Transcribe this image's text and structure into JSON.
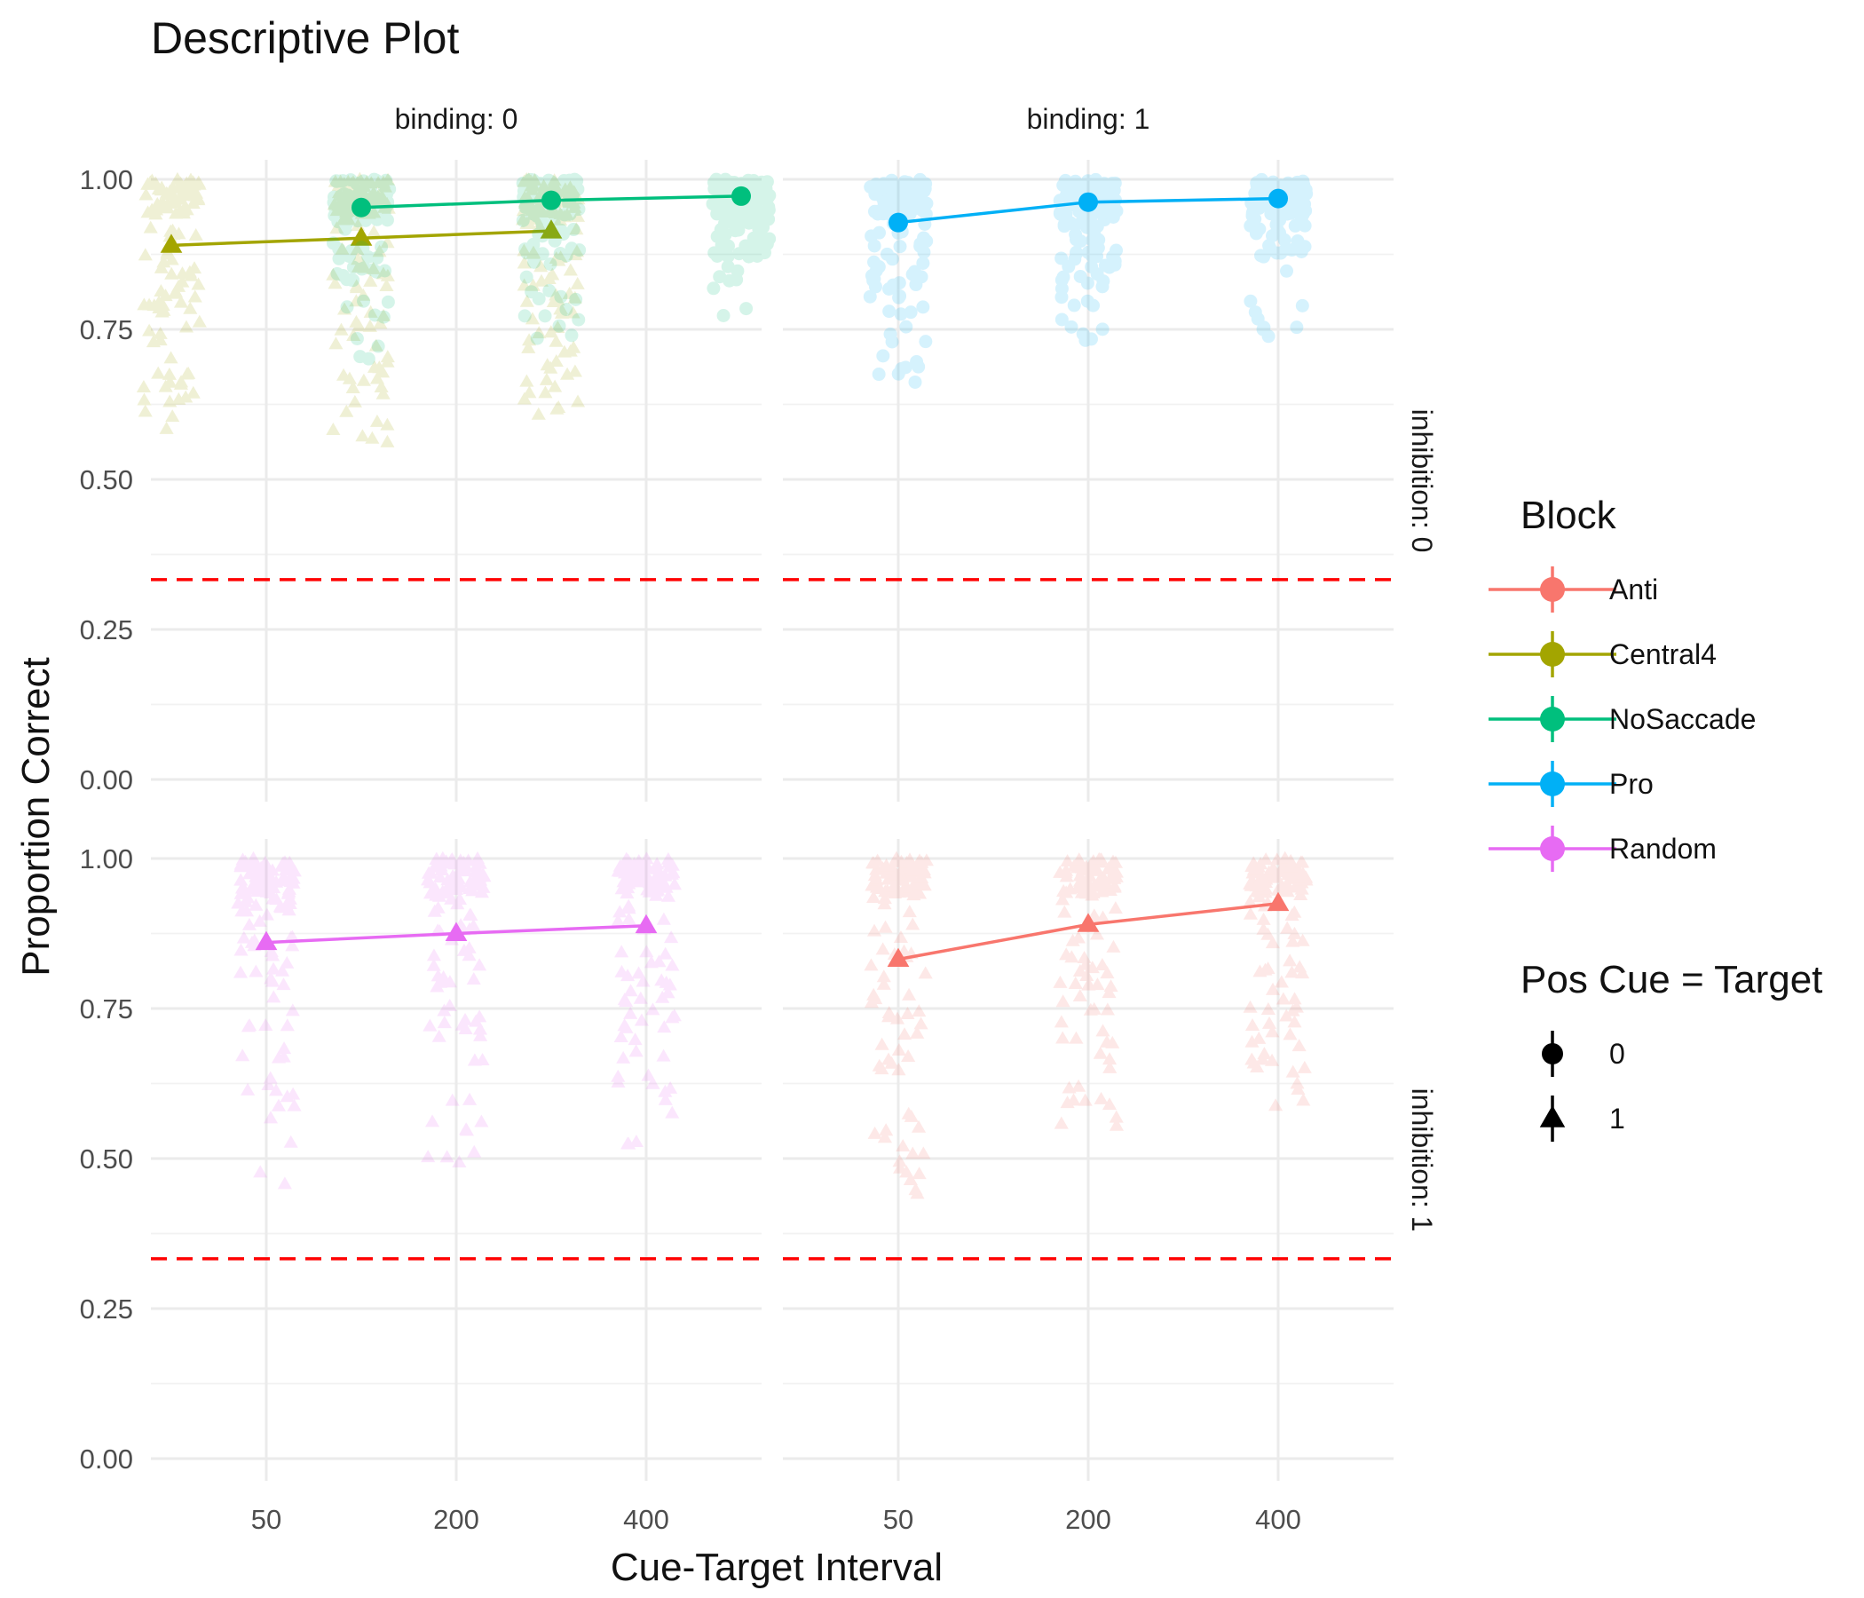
{
  "chart_data": {
    "type": "scatter",
    "title": "Descriptive Plot",
    "xlabel": "Cue-Target Interval",
    "ylabel": "Proportion Correct",
    "x_categories": [
      "50",
      "200",
      "400"
    ],
    "y_ticks": [
      "0.00",
      "0.25",
      "0.50",
      "0.75",
      "1.00"
    ],
    "ylim": [
      0,
      1
    ],
    "grid": true,
    "reference_line": 0.333,
    "facet_columns": [
      "binding: 0",
      "binding: 1"
    ],
    "facet_rows": [
      "inhibition: 0",
      "inhibition: 1"
    ],
    "legend_placement": "right",
    "legend": {
      "color_title": "Block",
      "color_items": [
        {
          "name": "Anti",
          "color": "#F8766D"
        },
        {
          "name": "Central4",
          "color": "#A3A500"
        },
        {
          "name": "NoSaccade",
          "color": "#00BF7D"
        },
        {
          "name": "Pro",
          "color": "#00B0F6"
        },
        {
          "name": "Random",
          "color": "#E76BF3"
        }
      ],
      "shape_title": "Pos Cue = Target",
      "shape_items": [
        {
          "name": "0",
          "shape": "circle"
        },
        {
          "name": "1",
          "shape": "triangle"
        }
      ]
    },
    "series": [
      {
        "name": "Central4",
        "facet_row": 0,
        "facet_col": 0,
        "shape": "triangle",
        "color": "#A3A500",
        "dodge": -1,
        "x": [
          "50",
          "200",
          "400"
        ],
        "means": [
          0.89,
          0.902,
          0.914
        ],
        "spread": {
          "min": [
            0.58,
            0.56,
            0.6
          ],
          "bulk": [
            0.7,
            0.7,
            0.7
          ]
        }
      },
      {
        "name": "NoSaccade",
        "facet_row": 0,
        "facet_col": 0,
        "shape": "circle",
        "color": "#00BF7D",
        "dodge": 1,
        "x": [
          "50",
          "200",
          "400"
        ],
        "means": [
          0.953,
          0.965,
          0.972
        ],
        "spread": {
          "min": [
            0.7,
            0.72,
            0.76
          ],
          "bulk": [
            0.83,
            0.87,
            0.87
          ]
        }
      },
      {
        "name": "Pro",
        "facet_row": 0,
        "facet_col": 1,
        "shape": "circle",
        "color": "#00B0F6",
        "dodge": 0,
        "x": [
          "50",
          "200",
          "400"
        ],
        "means": [
          0.928,
          0.962,
          0.968
        ],
        "spread": {
          "min": [
            0.66,
            0.72,
            0.72
          ],
          "bulk": [
            0.8,
            0.85,
            0.87
          ]
        }
      },
      {
        "name": "Random",
        "facet_row": 1,
        "facet_col": 0,
        "shape": "triangle",
        "color": "#E76BF3",
        "dodge": 0,
        "x": [
          "50",
          "200",
          "400"
        ],
        "means": [
          0.86,
          0.875,
          0.888
        ],
        "spread": {
          "min": [
            0.44,
            0.48,
            0.52
          ],
          "bulk": [
            0.72,
            0.7,
            0.68
          ]
        }
      },
      {
        "name": "Anti",
        "facet_row": 1,
        "facet_col": 1,
        "shape": "triangle",
        "color": "#F8766D",
        "dodge": 0,
        "x": [
          "50",
          "200",
          "400"
        ],
        "means": [
          0.832,
          0.89,
          0.925
        ],
        "spread": {
          "min": [
            0.44,
            0.55,
            0.58
          ],
          "bulk": [
            0.62,
            0.68,
            0.72
          ]
        }
      }
    ]
  }
}
